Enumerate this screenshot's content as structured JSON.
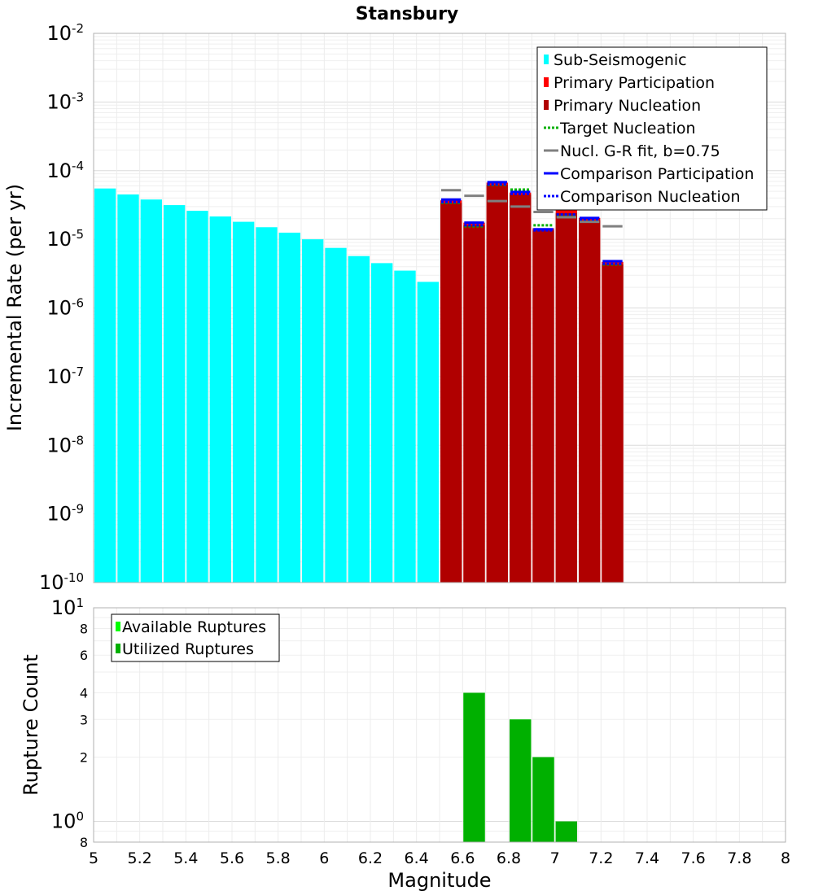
{
  "title": "Stansbury",
  "chart_data": [
    {
      "type": "bar",
      "ylabel": "Incremental Rate (per yr)",
      "ylim": [
        1e-10,
        0.01
      ],
      "yscale": "log",
      "xlim": [
        5.0,
        8.0
      ],
      "grid": true,
      "legend_position": "top-right",
      "y_tick_labels": [
        {
          "value": 1e-10,
          "base": "10",
          "exp": "-10"
        },
        {
          "value": 1e-09,
          "base": "10",
          "exp": "-9"
        },
        {
          "value": 1e-08,
          "base": "10",
          "exp": "-8"
        },
        {
          "value": 1e-07,
          "base": "10",
          "exp": "-7"
        },
        {
          "value": 1e-06,
          "base": "10",
          "exp": "-6"
        },
        {
          "value": 1e-05,
          "base": "10",
          "exp": "-5"
        },
        {
          "value": 0.0001,
          "base": "10",
          "exp": "-4"
        },
        {
          "value": 0.001,
          "base": "10",
          "exp": "-3"
        },
        {
          "value": 0.01,
          "base": "10",
          "exp": "-2"
        }
      ],
      "legend": [
        {
          "label": "Sub-Seismogenic",
          "style": "box",
          "color": "#00ffff"
        },
        {
          "label": "Primary Participation",
          "style": "box",
          "color": "#ff0000"
        },
        {
          "label": "Primary Nucleation",
          "style": "box",
          "color": "#b00000"
        },
        {
          "label": " Target Nucleation",
          "style": "dotted",
          "color": "#00b000"
        },
        {
          "label": "Nucl. G-R fit, b=0.75",
          "style": "solid",
          "color": "#808080"
        },
        {
          "label": "Comparison Participation",
          "style": "solid",
          "color": "#0000ff"
        },
        {
          "label": " Comparison Nucleation",
          "style": "dotted",
          "color": "#0000ff"
        }
      ],
      "series": [
        {
          "name": "Sub-Seismogenic",
          "color": "#00ffff",
          "kind": "bar",
          "x": [
            5.05,
            5.15,
            5.25,
            5.35,
            5.45,
            5.55,
            5.65,
            5.75,
            5.85,
            5.95,
            6.05,
            6.15,
            6.25,
            6.35,
            6.45
          ],
          "values": [
            5.5e-05,
            4.5e-05,
            3.8e-05,
            3.15e-05,
            2.6e-05,
            2.15e-05,
            1.8e-05,
            1.5e-05,
            1.25e-05,
            1e-05,
            7.5e-06,
            5.7e-06,
            4.5e-06,
            3.5e-06,
            2.4e-06
          ]
        },
        {
          "name": "Primary Participation",
          "color": "#ff0000",
          "kind": "bar",
          "x": [
            6.55,
            6.65,
            6.75,
            6.85,
            6.95,
            7.05,
            7.15,
            7.25
          ],
          "values": [
            3.7e-05,
            1.75e-05,
            6.7e-05,
            4.8e-05,
            1.45e-05,
            4.3e-05,
            2.05e-05,
            4.7e-06
          ]
        },
        {
          "name": "Primary Nucleation",
          "color": "#b00000",
          "kind": "bar",
          "x": [
            6.55,
            6.65,
            6.75,
            6.85,
            6.95,
            7.05,
            7.15,
            7.25
          ],
          "values": [
            3.4e-05,
            1.6e-05,
            6.2e-05,
            4.5e-05,
            1.35e-05,
            2.4e-05,
            1.9e-05,
            4.3e-06
          ]
        },
        {
          "name": " Target Nucleation",
          "color": "#00b000",
          "kind": "dotted",
          "x": [
            6.55,
            6.65,
            6.75,
            6.85,
            6.95,
            7.05,
            7.15,
            7.25
          ],
          "values": [
            3.4e-05,
            1.55e-05,
            6.2e-05,
            5.3e-05,
            1.6e-05,
            2.2e-05,
            1.9e-05,
            4.3e-06
          ]
        },
        {
          "name": "Nucl. G-R fit, b=0.75",
          "color": "#808080",
          "kind": "solid",
          "x": [
            6.55,
            6.65,
            6.75,
            6.85,
            6.95,
            7.05,
            7.15,
            7.25
          ],
          "values": [
            5.2e-05,
            4.3e-05,
            3.6e-05,
            3e-05,
            2.5e-05,
            2.1e-05,
            1.8e-05,
            1.55e-05
          ]
        },
        {
          "name": "Comparison Participation",
          "color": "#0000ff",
          "kind": "solid",
          "x": [
            6.55,
            6.65,
            6.75,
            6.85,
            6.95,
            7.05,
            7.15,
            7.25
          ],
          "values": [
            3.8e-05,
            1.75e-05,
            6.8e-05,
            4.9e-05,
            1.4e-05,
            4.3e-05,
            2.05e-05,
            4.8e-06
          ]
        },
        {
          "name": " Comparison Nucleation",
          "color": "#0000ff",
          "kind": "dotted",
          "x": [
            6.55,
            6.65,
            6.75,
            6.85,
            6.95,
            7.05,
            7.15,
            7.25
          ],
          "values": [
            3.5e-05,
            1.6e-05,
            6.3e-05,
            4.6e-05,
            1.35e-05,
            2.3e-05,
            1.95e-05,
            4.4e-06
          ]
        }
      ]
    },
    {
      "type": "bar",
      "xlabel": "Magnitude",
      "ylabel": "Rupture Count",
      "yscale": "log",
      "ylim": [
        0.8,
        10
      ],
      "xlim": [
        5.0,
        8.0
      ],
      "grid": true,
      "legend_position": "top-left",
      "x_tick_labels": [
        "5",
        "5.2",
        "5.4",
        "5.6",
        "5.8",
        "6",
        "6.2",
        "6.4",
        "6.6",
        "6.8",
        "7",
        "7.2",
        "7.4",
        "7.6",
        "7.8",
        "8"
      ],
      "x_tick_values": [
        5.0,
        5.2,
        5.4,
        5.6,
        5.8,
        6.0,
        6.2,
        6.4,
        6.6,
        6.8,
        7.0,
        7.2,
        7.4,
        7.6,
        7.8,
        8.0
      ],
      "y_tick_labels": [
        {
          "value": 10,
          "base": "10",
          "exp": "1"
        },
        {
          "value": 8,
          "base": "8",
          "exp": ""
        },
        {
          "value": 6,
          "base": "6",
          "exp": ""
        },
        {
          "value": 4,
          "base": "4",
          "exp": ""
        },
        {
          "value": 3,
          "base": "3",
          "exp": ""
        },
        {
          "value": 2,
          "base": "2",
          "exp": ""
        },
        {
          "value": 1,
          "base": "10",
          "exp": "0"
        },
        {
          "value": 0.8,
          "base": "8",
          "exp": ""
        }
      ],
      "legend": [
        {
          "label": "Available Ruptures",
          "style": "box",
          "color": "#00ff00"
        },
        {
          "label": "Utilized Ruptures",
          "style": "box",
          "color": "#00b000"
        }
      ],
      "series": [
        {
          "name": "Available Ruptures",
          "color": "#00ff00",
          "kind": "bar",
          "x": [
            6.65,
            6.85,
            6.95,
            7.05
          ],
          "values": [
            4,
            3,
            2,
            1
          ]
        },
        {
          "name": "Utilized Ruptures",
          "color": "#00b000",
          "kind": "bar",
          "x": [
            6.65,
            6.85,
            6.95,
            7.05
          ],
          "values": [
            4,
            3,
            2,
            1
          ]
        }
      ]
    }
  ]
}
